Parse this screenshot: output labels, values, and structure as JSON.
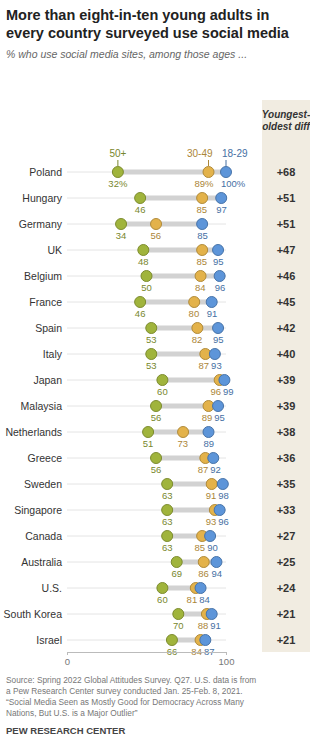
{
  "chart_data": {
    "type": "dot",
    "title": "More than eight-in-ten young adults in every country surveyed use social media",
    "subtitle": "% who use social media sites, among those ages ...",
    "categories": [
      "Poland",
      "Hungary",
      "Germany",
      "UK",
      "Belgium",
      "France",
      "Spain",
      "Italy",
      "Japan",
      "Malaysia",
      "Netherlands",
      "Greece",
      "Sweden",
      "Singapore",
      "Canada",
      "Australia",
      "U.S.",
      "South Korea",
      "Israel"
    ],
    "series": [
      {
        "name": "50+",
        "color": "#a0b43c",
        "values": [
          32,
          46,
          34,
          48,
          50,
          46,
          53,
          53,
          60,
          56,
          51,
          56,
          63,
          63,
          63,
          69,
          60,
          70,
          66
        ],
        "value_labels": [
          "32%",
          "46",
          "34",
          "48",
          "50",
          "46",
          "53",
          "53",
          "60",
          "56",
          "51",
          "56",
          "63",
          "63",
          "63",
          "69",
          "60",
          "70",
          "66"
        ]
      },
      {
        "name": "30-49",
        "color": "#e3b24a",
        "values": [
          89,
          85,
          56,
          85,
          84,
          80,
          82,
          87,
          96,
          89,
          73,
          87,
          91,
          93,
          85,
          86,
          81,
          88,
          84
        ],
        "value_labels": [
          "89%",
          "85",
          "56",
          "85",
          "84",
          "80",
          "82",
          "87",
          "96",
          "89",
          "73",
          "87",
          "91",
          "93",
          "85",
          "86",
          "81",
          "88",
          "84"
        ]
      },
      {
        "name": "18-29",
        "color": "#5d95d9",
        "values": [
          100,
          97,
          85,
          95,
          96,
          91,
          95,
          93,
          99,
          95,
          89,
          92,
          98,
          96,
          90,
          94,
          84,
          91,
          87
        ],
        "value_labels": [
          "100%",
          "97",
          "85",
          "95",
          "96",
          "91",
          "95",
          "93",
          "99",
          "95",
          "89",
          "92",
          "98",
          "96",
          "90",
          "94",
          "84",
          "91",
          "87"
        ]
      }
    ],
    "xlim": [
      0,
      100
    ],
    "xticks": [
      0,
      100
    ],
    "grid": true,
    "data_labels": true,
    "differences": {
      "title": "Youngest-oldest diff",
      "values": [
        68,
        51,
        51,
        47,
        46,
        45,
        42,
        40,
        39,
        39,
        38,
        36,
        35,
        33,
        27,
        25,
        24,
        21,
        21
      ],
      "value_labels": [
        "+68",
        "+51",
        "+51",
        "+47",
        "+46",
        "+45",
        "+42",
        "+40",
        "+39",
        "+39",
        "+38",
        "+36",
        "+35",
        "+33",
        "+27",
        "+25",
        "+24",
        "+21",
        "+21"
      ]
    },
    "source": [
      "Source: Spring 2022 Global Attitudes Survey. Q27. U.S. data is from",
      "a Pew Research Center survey conducted Jan. 25-Feb. 8, 2021.",
      "“Social Media Seen as Mostly Good for Democracy Across Many",
      "Nations, But U.S. is a Major Outlier”"
    ],
    "credit": "PEW RESEARCH CENTER"
  }
}
